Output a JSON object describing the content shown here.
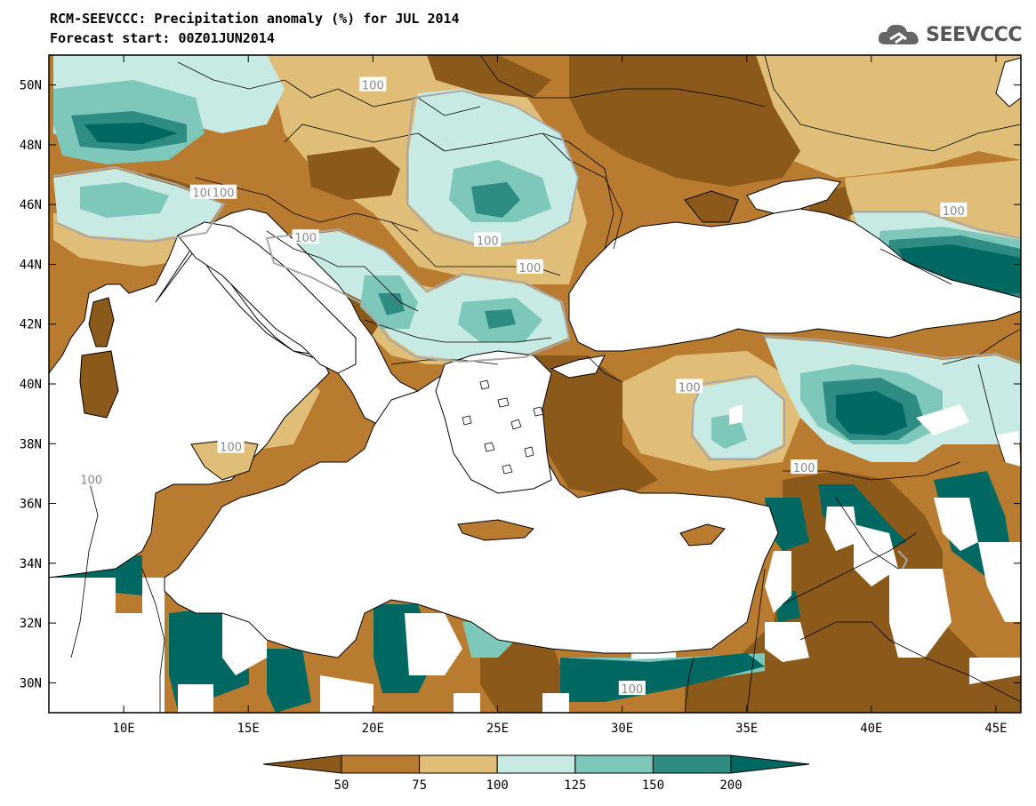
{
  "header": {
    "title_line1": "RCM-SEEVCCC: Precipitation anomaly (%) for JUL 2014",
    "title_line2": "Forecast start: 00Z01JUN2014",
    "logo_text": "SEEVCCC"
  },
  "map": {
    "lon_range": [
      7,
      46
    ],
    "lat_range": [
      29,
      51
    ],
    "lon_ticks": [
      "10E",
      "15E",
      "20E",
      "25E",
      "30E",
      "35E",
      "40E",
      "45E"
    ],
    "lon_tick_values": [
      10,
      15,
      20,
      25,
      30,
      35,
      40,
      45
    ],
    "lat_ticks": [
      "30N",
      "32N",
      "34N",
      "36N",
      "38N",
      "40N",
      "42N",
      "44N",
      "46N",
      "48N",
      "50N"
    ],
    "lat_tick_values": [
      30,
      32,
      34,
      36,
      38,
      40,
      42,
      44,
      46,
      48,
      50
    ],
    "contour_labels": [
      {
        "text": "100",
        "lon": 20.0,
        "lat": 50.0
      },
      {
        "text": "100",
        "lon": 13.2,
        "lat": 46.4
      },
      {
        "text": "100",
        "lon": 14.0,
        "lat": 46.4
      },
      {
        "text": "100",
        "lon": 17.3,
        "lat": 44.9
      },
      {
        "text": "100",
        "lon": 24.6,
        "lat": 44.8
      },
      {
        "text": "100",
        "lon": 26.3,
        "lat": 43.9
      },
      {
        "text": "100",
        "lon": 32.7,
        "lat": 39.9
      },
      {
        "text": "100",
        "lon": 43.3,
        "lat": 45.8
      },
      {
        "text": "100",
        "lon": 14.3,
        "lat": 37.9
      },
      {
        "text": "100",
        "lon": 8.7,
        "lat": 36.8
      },
      {
        "text": "100",
        "lon": 37.3,
        "lat": 37.2
      },
      {
        "text": "100",
        "lon": 30.4,
        "lat": 29.8
      }
    ]
  },
  "legend": {
    "breaks": [
      "50",
      "75",
      "100",
      "125",
      "150",
      "200"
    ],
    "colors": [
      "#8B5A1A",
      "#B97B30",
      "#E0BE78",
      "#C8EAE4",
      "#7DC8BA",
      "#2E8C82",
      "#006860"
    ]
  },
  "colors": {
    "sea": "#FFFFFF",
    "c_lt50": "#8B5A1A",
    "c_50_75": "#B97B30",
    "c_75_100": "#E0BE78",
    "c_100_125": "#C8EAE4",
    "c_125_150": "#7DC8BA",
    "c_150_200": "#2E8C82",
    "c_gt200": "#006860",
    "contour_100": "#A8A8A8"
  }
}
